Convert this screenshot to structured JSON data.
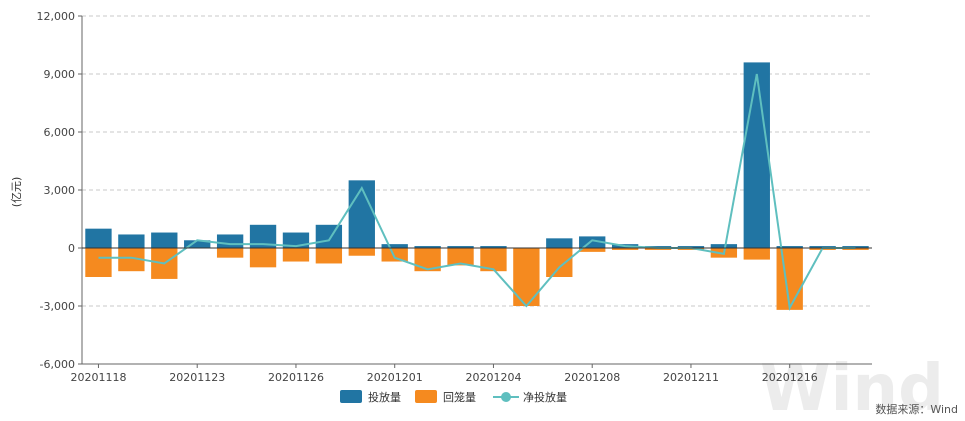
{
  "chart_data": {
    "type": "bar",
    "ylabel": "(亿元)",
    "ylim": [
      -6000,
      12000
    ],
    "yticks": [
      12000,
      9000,
      6000,
      3000,
      0,
      -3000,
      -6000
    ],
    "ytick_labels": [
      "12,000",
      "9,000",
      "6,000",
      "3,000",
      "0",
      "-3,000",
      "-6,000"
    ],
    "grid": true,
    "legend_position": "bottom-center",
    "x_tick_labels": [
      "20201118",
      "20201123",
      "20201126",
      "20201201",
      "20201204",
      "20201208",
      "20201211",
      "20201216"
    ],
    "x_tick_positions": [
      0,
      3,
      6,
      9,
      12,
      15,
      18,
      21
    ],
    "categories": [
      "1",
      "2",
      "3",
      "4",
      "5",
      "6",
      "7",
      "8",
      "9",
      "10",
      "11",
      "12",
      "13",
      "14",
      "15",
      "16",
      "17",
      "18",
      "19",
      "20",
      "21",
      "22",
      "23",
      "24"
    ],
    "series": [
      {
        "name": "投放量",
        "type": "bar",
        "color": "#2175a3",
        "values": [
          1000,
          700,
          800,
          400,
          700,
          1200,
          800,
          1200,
          3500,
          200,
          100,
          100,
          100,
          0,
          500,
          600,
          200,
          100,
          100,
          200,
          9600,
          100,
          100,
          100
        ]
      },
      {
        "name": "回笼量",
        "type": "bar",
        "color": "#f58a1f",
        "values": [
          -1500,
          -1200,
          -1600,
          0,
          -500,
          -1000,
          -700,
          -800,
          -400,
          -700,
          -1200,
          -900,
          -1200,
          -3000,
          -1500,
          -200,
          -100,
          -100,
          -100,
          -500,
          -600,
          -3200,
          -100,
          -100
        ]
      },
      {
        "name": "净投放量",
        "type": "line",
        "color": "#5fbfbf",
        "values": [
          -500,
          -500,
          -800,
          400,
          200,
          200,
          100,
          400,
          3100,
          -500,
          -1100,
          -800,
          -1100,
          -3000,
          -1000,
          400,
          100,
          0,
          0,
          -300,
          9000,
          -3100,
          0,
          0
        ]
      }
    ]
  },
  "source_text": "数据来源：Wind",
  "watermark_text": "Wind"
}
